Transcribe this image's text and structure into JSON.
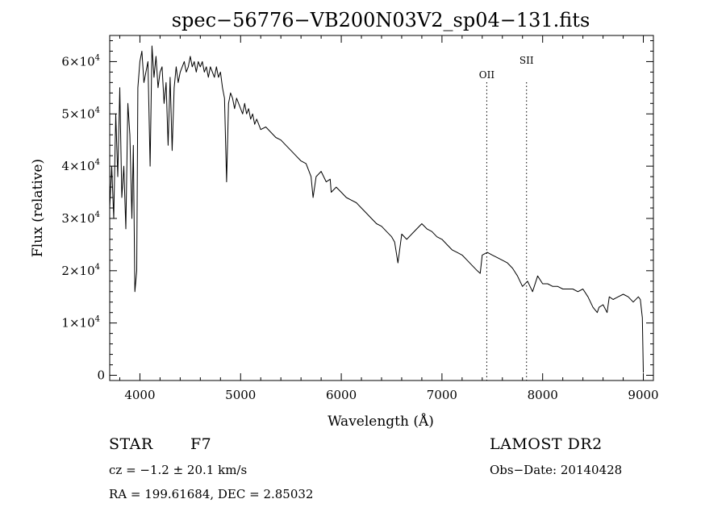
{
  "chart_data": {
    "type": "line",
    "title": "spec−56776−VB200N03V2_sp04−131.fits",
    "xlabel": "Wavelength (Å)",
    "ylabel": "Flux (relative)",
    "xlim": [
      3700,
      9100
    ],
    "ylim": [
      -1000,
      65000
    ],
    "xticks": [
      {
        "value": 4000,
        "label": "4000"
      },
      {
        "value": 5000,
        "label": "5000"
      },
      {
        "value": 6000,
        "label": "6000"
      },
      {
        "value": 7000,
        "label": "7000"
      },
      {
        "value": 8000,
        "label": "8000"
      },
      {
        "value": 9000,
        "label": "9000"
      }
    ],
    "yticks": [
      {
        "value": 0,
        "mantissa": "0",
        "exp": ""
      },
      {
        "value": 10000,
        "mantissa": "1×10",
        "exp": "4"
      },
      {
        "value": 20000,
        "mantissa": "2×10",
        "exp": "4"
      },
      {
        "value": 30000,
        "mantissa": "3×10",
        "exp": "4"
      },
      {
        "value": 40000,
        "mantissa": "4×10",
        "exp": "4"
      },
      {
        "value": 50000,
        "mantissa": "5×10",
        "exp": "4"
      },
      {
        "value": 60000,
        "mantissa": "6×10",
        "exp": "4"
      }
    ],
    "grid": false,
    "line_color": "#000000",
    "emission_lines": [
      {
        "label": "OII",
        "x": 7445
      },
      {
        "label": "SII",
        "x": 7840
      }
    ],
    "series": [
      {
        "x": [
          3700,
          3720,
          3740,
          3760,
          3780,
          3800,
          3820,
          3840,
          3860,
          3880,
          3900,
          3920,
          3935,
          3950,
          3968,
          3980,
          4000,
          4020,
          4040,
          4060,
          4080,
          4101,
          4120,
          4140,
          4160,
          4180,
          4200,
          4220,
          4240,
          4260,
          4280,
          4300,
          4320,
          4340,
          4360,
          4380,
          4400,
          4420,
          4440,
          4460,
          4480,
          4500,
          4520,
          4540,
          4560,
          4580,
          4600,
          4620,
          4640,
          4660,
          4680,
          4700,
          4720,
          4740,
          4760,
          4780,
          4800,
          4820,
          4840,
          4861,
          4880,
          4900,
          4920,
          4940,
          4960,
          4980,
          5000,
          5020,
          5040,
          5060,
          5080,
          5100,
          5120,
          5140,
          5160,
          5180,
          5200,
          5250,
          5300,
          5350,
          5400,
          5450,
          5500,
          5550,
          5600,
          5650,
          5700,
          5720,
          5750,
          5800,
          5850,
          5890,
          5900,
          5950,
          6000,
          6050,
          6100,
          6150,
          6200,
          6250,
          6300,
          6350,
          6400,
          6450,
          6500,
          6530,
          6563,
          6600,
          6650,
          6700,
          6750,
          6800,
          6850,
          6900,
          6950,
          7000,
          7050,
          7100,
          7150,
          7200,
          7250,
          7300,
          7350,
          7380,
          7400,
          7450,
          7500,
          7550,
          7600,
          7650,
          7700,
          7750,
          7800,
          7850,
          7900,
          7950,
          8000,
          8050,
          8100,
          8150,
          8200,
          8250,
          8300,
          8350,
          8400,
          8450,
          8500,
          8542,
          8560,
          8600,
          8640,
          8662,
          8700,
          8750,
          8800,
          8850,
          8900,
          8950,
          8970,
          8990,
          9000
        ],
        "y": [
          32000,
          40000,
          30000,
          50000,
          38000,
          55000,
          34000,
          40000,
          28000,
          52000,
          46000,
          30000,
          44000,
          16000,
          20000,
          55000,
          60000,
          62000,
          56000,
          58000,
          60000,
          40000,
          63000,
          57000,
          61000,
          55000,
          58000,
          59000,
          52000,
          56000,
          44000,
          57000,
          43000,
          55000,
          59000,
          56000,
          58000,
          59000,
          60000,
          58000,
          59000,
          61000,
          59000,
          60000,
          58000,
          60000,
          59000,
          60000,
          58000,
          59000,
          57000,
          59000,
          58000,
          57000,
          59000,
          57000,
          58000,
          55000,
          53000,
          37000,
          52000,
          54000,
          53000,
          51000,
          53000,
          52000,
          51000,
          50000,
          52000,
          50000,
          51000,
          49000,
          50000,
          48000,
          49000,
          48000,
          47000,
          47500,
          46500,
          45500,
          45000,
          44000,
          43000,
          42000,
          41000,
          40500,
          38000,
          34000,
          38000,
          39000,
          37000,
          37500,
          35000,
          36000,
          35000,
          34000,
          33500,
          33000,
          32000,
          31000,
          30000,
          29000,
          28500,
          27500,
          26500,
          25500,
          21500,
          27000,
          26000,
          27000,
          28000,
          29000,
          28000,
          27500,
          26500,
          26000,
          25000,
          24000,
          23500,
          23000,
          22000,
          21000,
          20000,
          19500,
          23000,
          23500,
          23000,
          22500,
          22000,
          21500,
          20500,
          19000,
          17000,
          18000,
          16000,
          19000,
          17500,
          17500,
          17000,
          17000,
          16500,
          16500,
          16500,
          16000,
          16500,
          15000,
          13000,
          12000,
          13000,
          13500,
          12000,
          15000,
          14500,
          15000,
          15500,
          15000,
          14000,
          15000,
          14500,
          11000,
          500
        ]
      }
    ]
  },
  "info": {
    "object_class": "STAR",
    "subclass": "F7",
    "survey": "LAMOST DR2",
    "redshift": "cz = −1.2 ± 20.1 km/s",
    "obs_date": "Obs−Date: 20140428",
    "coords": "RA = 199.61684, DEC =   2.85032"
  }
}
